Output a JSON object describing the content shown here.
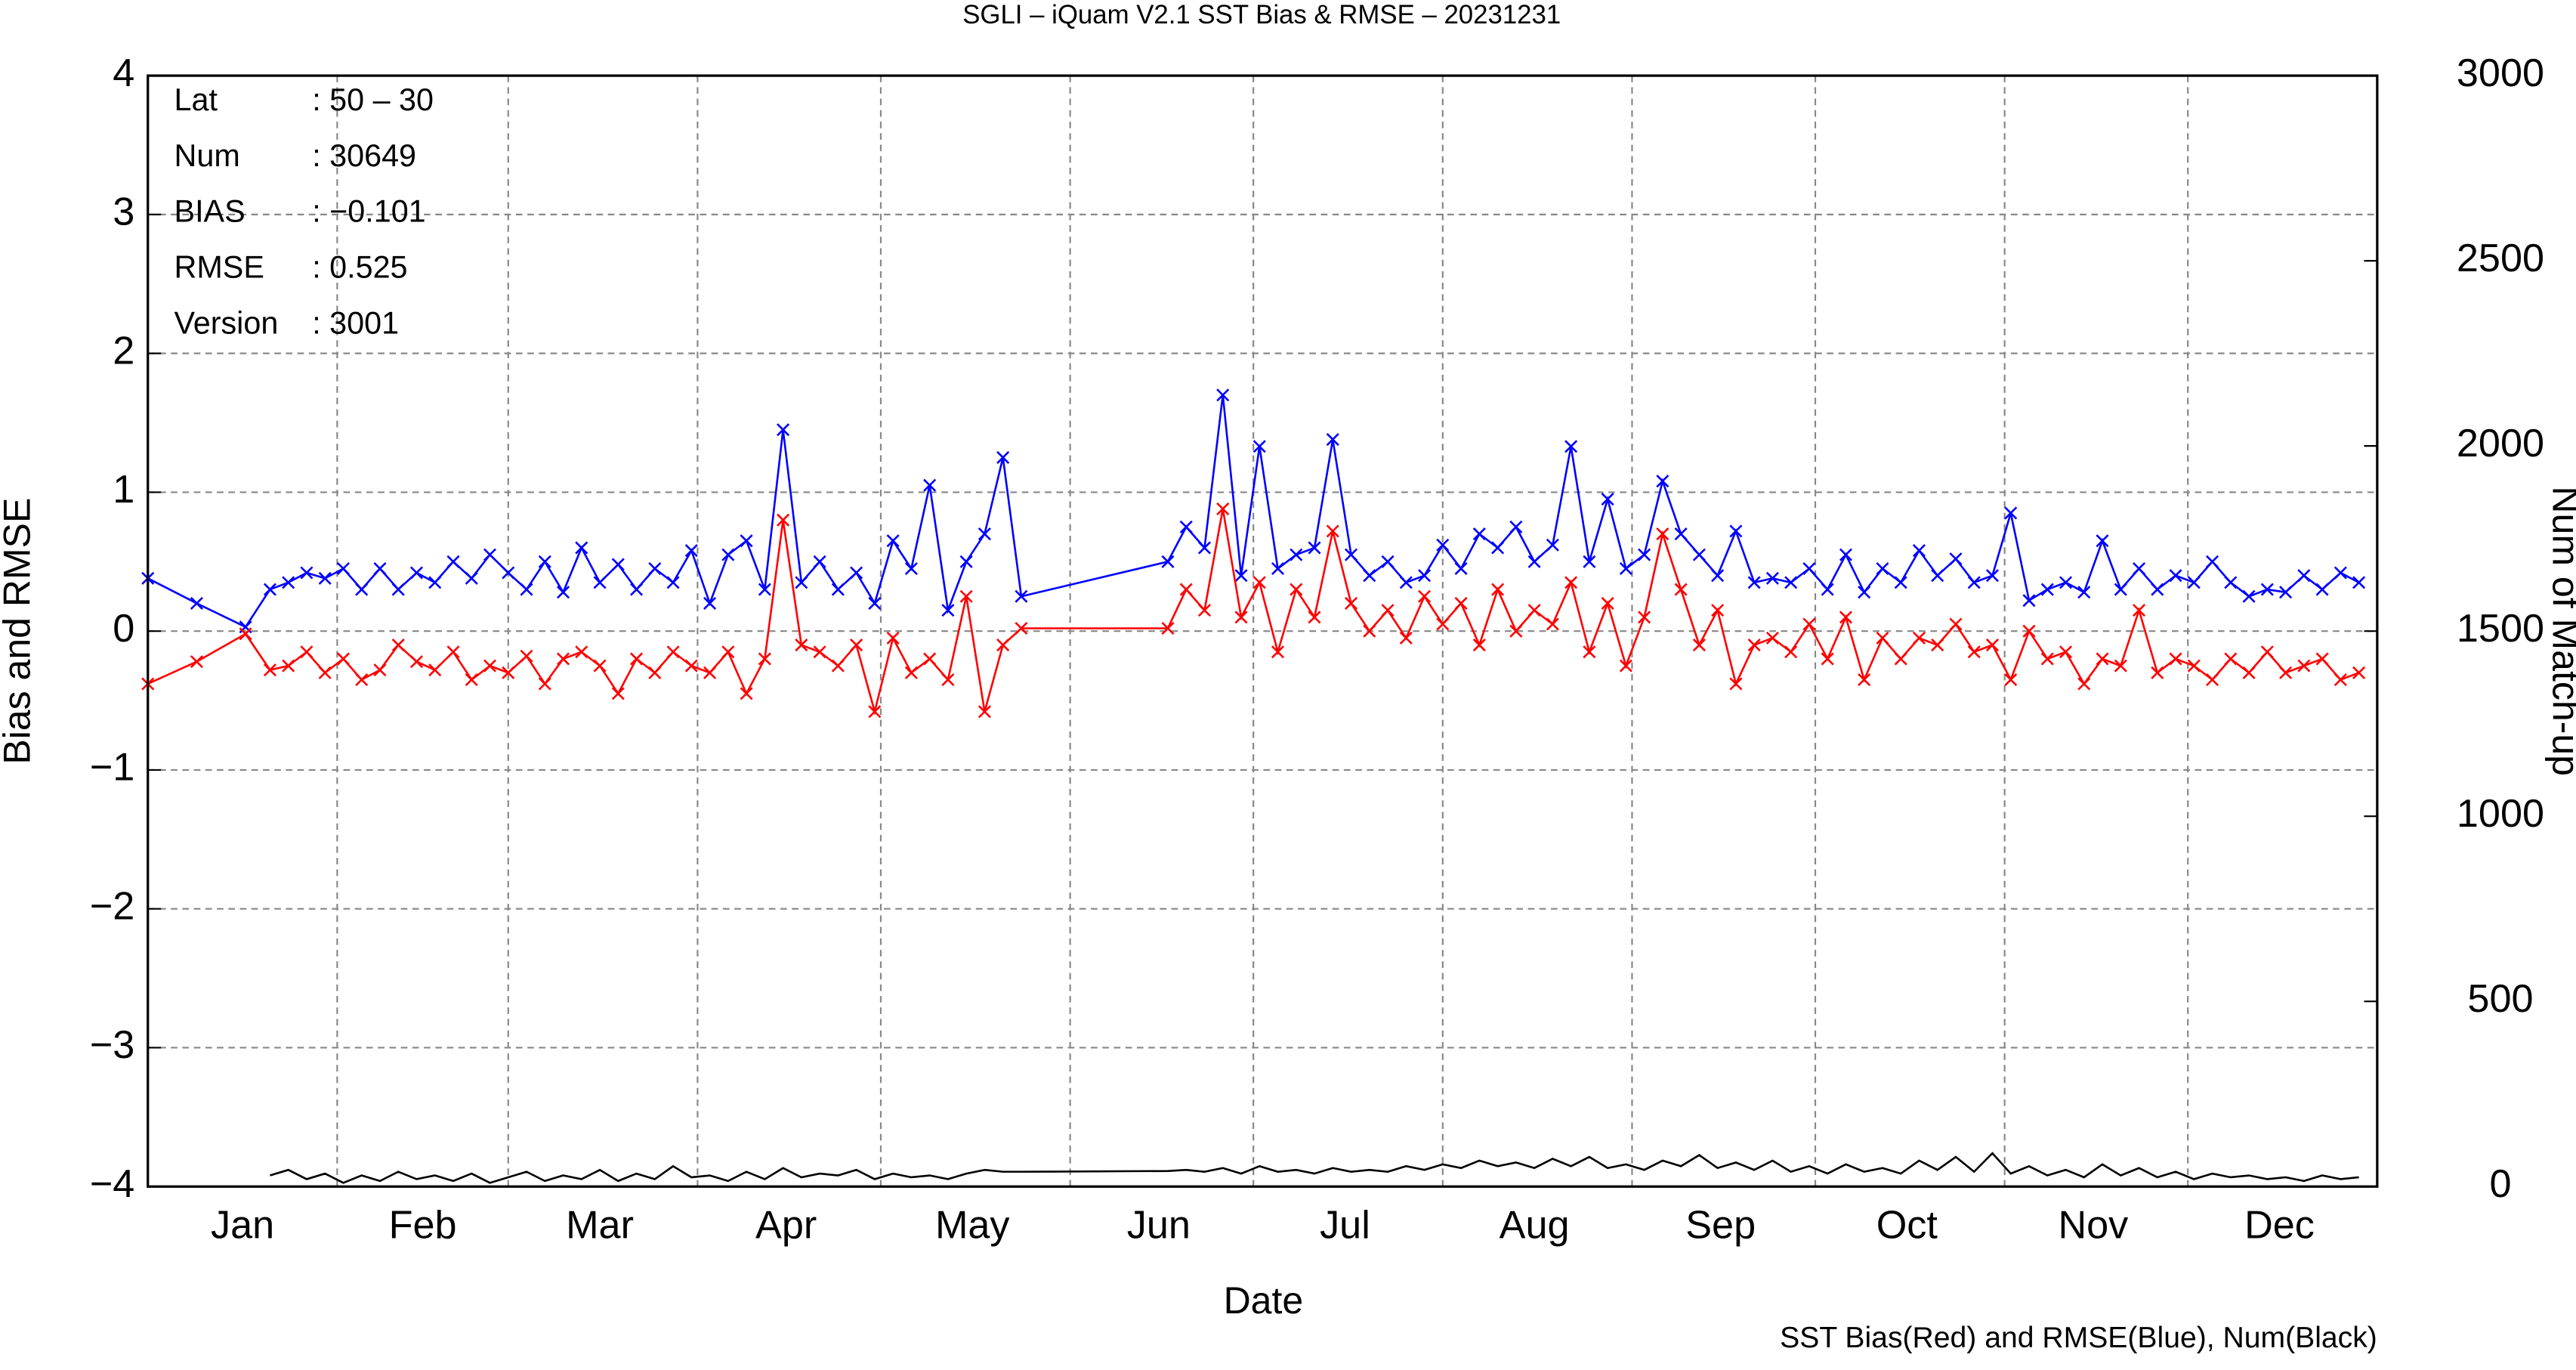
{
  "chart_data": {
    "type": "line",
    "title": "SGLI – iQuam V2.1 SST Bias & RMSE  – 20231231",
    "x_label": "Date",
    "y_label": "Bias and RMSE",
    "y2_label": "Num of Match-up",
    "note": "SST Bias(Red) and RMSE(Blue), Num(Black)",
    "info": [
      [
        "Lat",
        ": 50 – 30"
      ],
      [
        "Num",
        ": 30649"
      ],
      [
        "BIAS",
        ": −0.101"
      ],
      [
        "RMSE",
        ": 0.525"
      ],
      [
        "Version",
        ": 3001"
      ]
    ],
    "grid": true,
    "xlim": [
      0,
      365
    ],
    "xticks": [
      {
        "value": 15.5,
        "label": "Jan"
      },
      {
        "value": 45,
        "label": "Feb"
      },
      {
        "value": 74,
        "label": "Mar"
      },
      {
        "value": 104.5,
        "label": "Apr"
      },
      {
        "value": 135,
        "label": "May"
      },
      {
        "value": 165.5,
        "label": "Jun"
      },
      {
        "value": 196,
        "label": "Jul"
      },
      {
        "value": 227,
        "label": "Aug"
      },
      {
        "value": 257.5,
        "label": "Sep"
      },
      {
        "value": 288,
        "label": "Oct"
      },
      {
        "value": 318.5,
        "label": "Nov"
      },
      {
        "value": 349,
        "label": "Dec"
      }
    ],
    "xgrid": [
      31,
      59,
      90,
      120,
      151,
      181,
      212,
      243,
      273,
      304,
      334
    ],
    "ylim": [
      -4,
      4
    ],
    "yticks": [
      {
        "value": -4,
        "label": "−4"
      },
      {
        "value": -3,
        "label": "−3"
      },
      {
        "value": -2,
        "label": "−2"
      },
      {
        "value": -1,
        "label": "−1"
      },
      0,
      1,
      2,
      3,
      4
    ],
    "y2lim": [
      0,
      3000
    ],
    "y2ticks": [
      0,
      500,
      1000,
      1500,
      2000,
      2500,
      3000
    ],
    "x": [
      0,
      8,
      16,
      20,
      23,
      26,
      29,
      32,
      35,
      38,
      41,
      44,
      47,
      50,
      53,
      56,
      59,
      62,
      65,
      68,
      71,
      74,
      77,
      80,
      83,
      86,
      89,
      92,
      95,
      98,
      101,
      104,
      107,
      110,
      113,
      116,
      119,
      122,
      125,
      128,
      131,
      134,
      137,
      140,
      143,
      167,
      170,
      173,
      176,
      179,
      182,
      185,
      188,
      191,
      194,
      197,
      200,
      203,
      206,
      209,
      212,
      215,
      218,
      221,
      224,
      227,
      230,
      233,
      236,
      239,
      242,
      245,
      248,
      251,
      254,
      257,
      260,
      263,
      266,
      269,
      272,
      275,
      278,
      281,
      284,
      287,
      290,
      293,
      296,
      299,
      302,
      305,
      308,
      311,
      314,
      317,
      320,
      323,
      326,
      329,
      332,
      335,
      338,
      341,
      344,
      347,
      350,
      353,
      356,
      359,
      362
    ],
    "series": [
      {
        "color": "#0000ff",
        "marker": "x",
        "values": [
          0.38,
          0.2,
          0.03,
          0.3,
          0.35,
          0.42,
          0.38,
          0.45,
          0.3,
          0.45,
          0.3,
          0.42,
          0.35,
          0.5,
          0.38,
          0.55,
          0.42,
          0.3,
          0.5,
          0.28,
          0.6,
          0.35,
          0.48,
          0.3,
          0.45,
          0.35,
          0.58,
          0.2,
          0.55,
          0.65,
          0.3,
          1.45,
          0.35,
          0.5,
          0.3,
          0.42,
          0.2,
          0.65,
          0.45,
          1.05,
          0.15,
          0.5,
          0.7,
          1.25,
          0.25,
          0.5,
          0.75,
          0.6,
          1.7,
          0.4,
          1.33,
          0.45,
          0.55,
          0.6,
          1.38,
          0.55,
          0.4,
          0.5,
          0.35,
          0.4,
          0.62,
          0.45,
          0.7,
          0.6,
          0.75,
          0.5,
          0.62,
          1.33,
          0.5,
          0.95,
          0.45,
          0.55,
          1.08,
          0.7,
          0.55,
          0.4,
          0.72,
          0.35,
          0.38,
          0.35,
          0.45,
          0.3,
          0.55,
          0.28,
          0.45,
          0.35,
          0.58,
          0.4,
          0.52,
          0.35,
          0.4,
          0.85,
          0.22,
          0.3,
          0.35,
          0.28,
          0.65,
          0.3,
          0.45,
          0.3,
          0.4,
          0.35,
          0.5,
          0.35,
          0.25,
          0.3,
          0.28,
          0.4,
          0.3,
          0.42,
          0.35
        ]
      },
      {
        "color": "#ff0000",
        "marker": "x",
        "values": [
          -0.38,
          -0.22,
          -0.02,
          -0.28,
          -0.25,
          -0.15,
          -0.3,
          -0.2,
          -0.35,
          -0.28,
          -0.1,
          -0.22,
          -0.28,
          -0.15,
          -0.35,
          -0.25,
          -0.3,
          -0.18,
          -0.38,
          -0.2,
          -0.15,
          -0.25,
          -0.45,
          -0.2,
          -0.3,
          -0.15,
          -0.25,
          -0.3,
          -0.15,
          -0.45,
          -0.2,
          0.8,
          -0.1,
          -0.15,
          -0.25,
          -0.1,
          -0.58,
          -0.05,
          -0.3,
          -0.2,
          -0.35,
          0.25,
          -0.58,
          -0.1,
          0.02,
          0.02,
          0.3,
          0.15,
          0.88,
          0.1,
          0.35,
          -0.15,
          0.3,
          0.1,
          0.72,
          0.2,
          0.0,
          0.15,
          -0.05,
          0.25,
          0.05,
          0.2,
          -0.1,
          0.3,
          0.0,
          0.15,
          0.05,
          0.35,
          -0.15,
          0.2,
          -0.25,
          0.1,
          0.7,
          0.3,
          -0.1,
          0.15,
          -0.38,
          -0.1,
          -0.05,
          -0.15,
          0.05,
          -0.2,
          0.1,
          -0.35,
          -0.05,
          -0.2,
          -0.05,
          -0.1,
          0.05,
          -0.15,
          -0.1,
          -0.35,
          0.0,
          -0.2,
          -0.15,
          -0.38,
          -0.2,
          -0.25,
          0.15,
          -0.3,
          -0.2,
          -0.25,
          -0.35,
          -0.2,
          -0.3,
          -0.15,
          -0.3,
          -0.25,
          -0.2,
          -0.35,
          -0.3
        ]
      },
      {
        "color": "#000000",
        "axis": "y2",
        "values": [
          null,
          null,
          null,
          30,
          45,
          20,
          35,
          10,
          30,
          15,
          40,
          20,
          30,
          15,
          35,
          10,
          25,
          40,
          15,
          30,
          20,
          45,
          15,
          35,
          20,
          55,
          25,
          30,
          15,
          40,
          20,
          50,
          25,
          35,
          30,
          45,
          20,
          35,
          25,
          30,
          20,
          35,
          45,
          40,
          40,
          42,
          45,
          40,
          50,
          35,
          55,
          40,
          45,
          35,
          50,
          40,
          45,
          40,
          55,
          45,
          60,
          50,
          70,
          55,
          65,
          50,
          75,
          55,
          80,
          50,
          60,
          45,
          70,
          55,
          85,
          50,
          65,
          45,
          70,
          40,
          55,
          35,
          60,
          40,
          50,
          35,
          70,
          45,
          80,
          40,
          90,
          35,
          55,
          30,
          45,
          25,
          60,
          30,
          50,
          25,
          40,
          20,
          35,
          25,
          30,
          20,
          25,
          15,
          30,
          20,
          25
        ]
      }
    ]
  }
}
